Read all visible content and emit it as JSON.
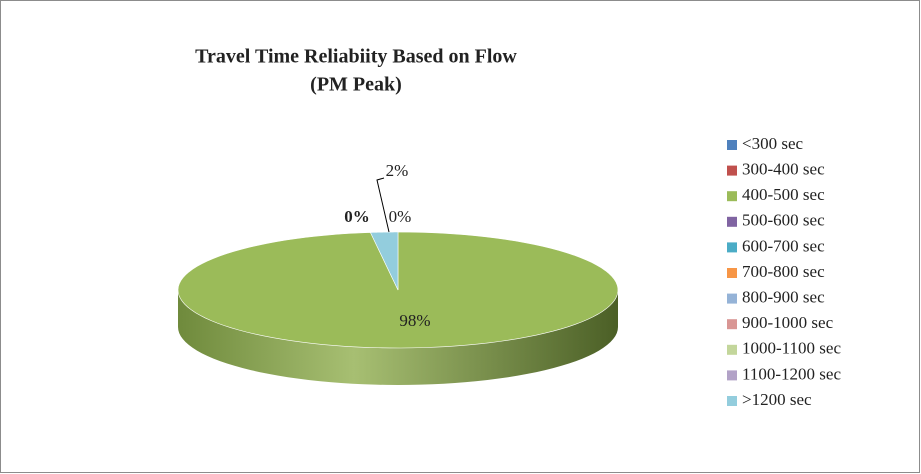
{
  "chart_data": {
    "type": "pie3d",
    "title": [
      "Travel Time Reliabiity Based on Flow",
      "(PM Peak)"
    ],
    "categories": [
      "<300 sec",
      "300-400 sec",
      "400-500 sec",
      "500-600 sec",
      "600-700 sec",
      "700-800 sec",
      "800-900 sec",
      "900-1000 sec",
      "1000-1100 sec",
      "1100-1200 sec",
      ">1200 sec"
    ],
    "values": [
      0,
      0,
      98,
      0,
      0,
      0,
      0,
      0,
      0,
      0,
      2
    ],
    "value_labels": [
      null,
      null,
      "98%",
      null,
      null,
      null,
      null,
      null,
      "0%",
      "0%",
      "2%"
    ],
    "colors": [
      "#4f81bd",
      "#c0504d",
      "#9bbb59",
      "#8064a2",
      "#4bacc6",
      "#f79646",
      "#95b3d7",
      "#d99694",
      "#c3d69b",
      "#b2a2c7",
      "#93cddd"
    ],
    "legend": "right"
  }
}
